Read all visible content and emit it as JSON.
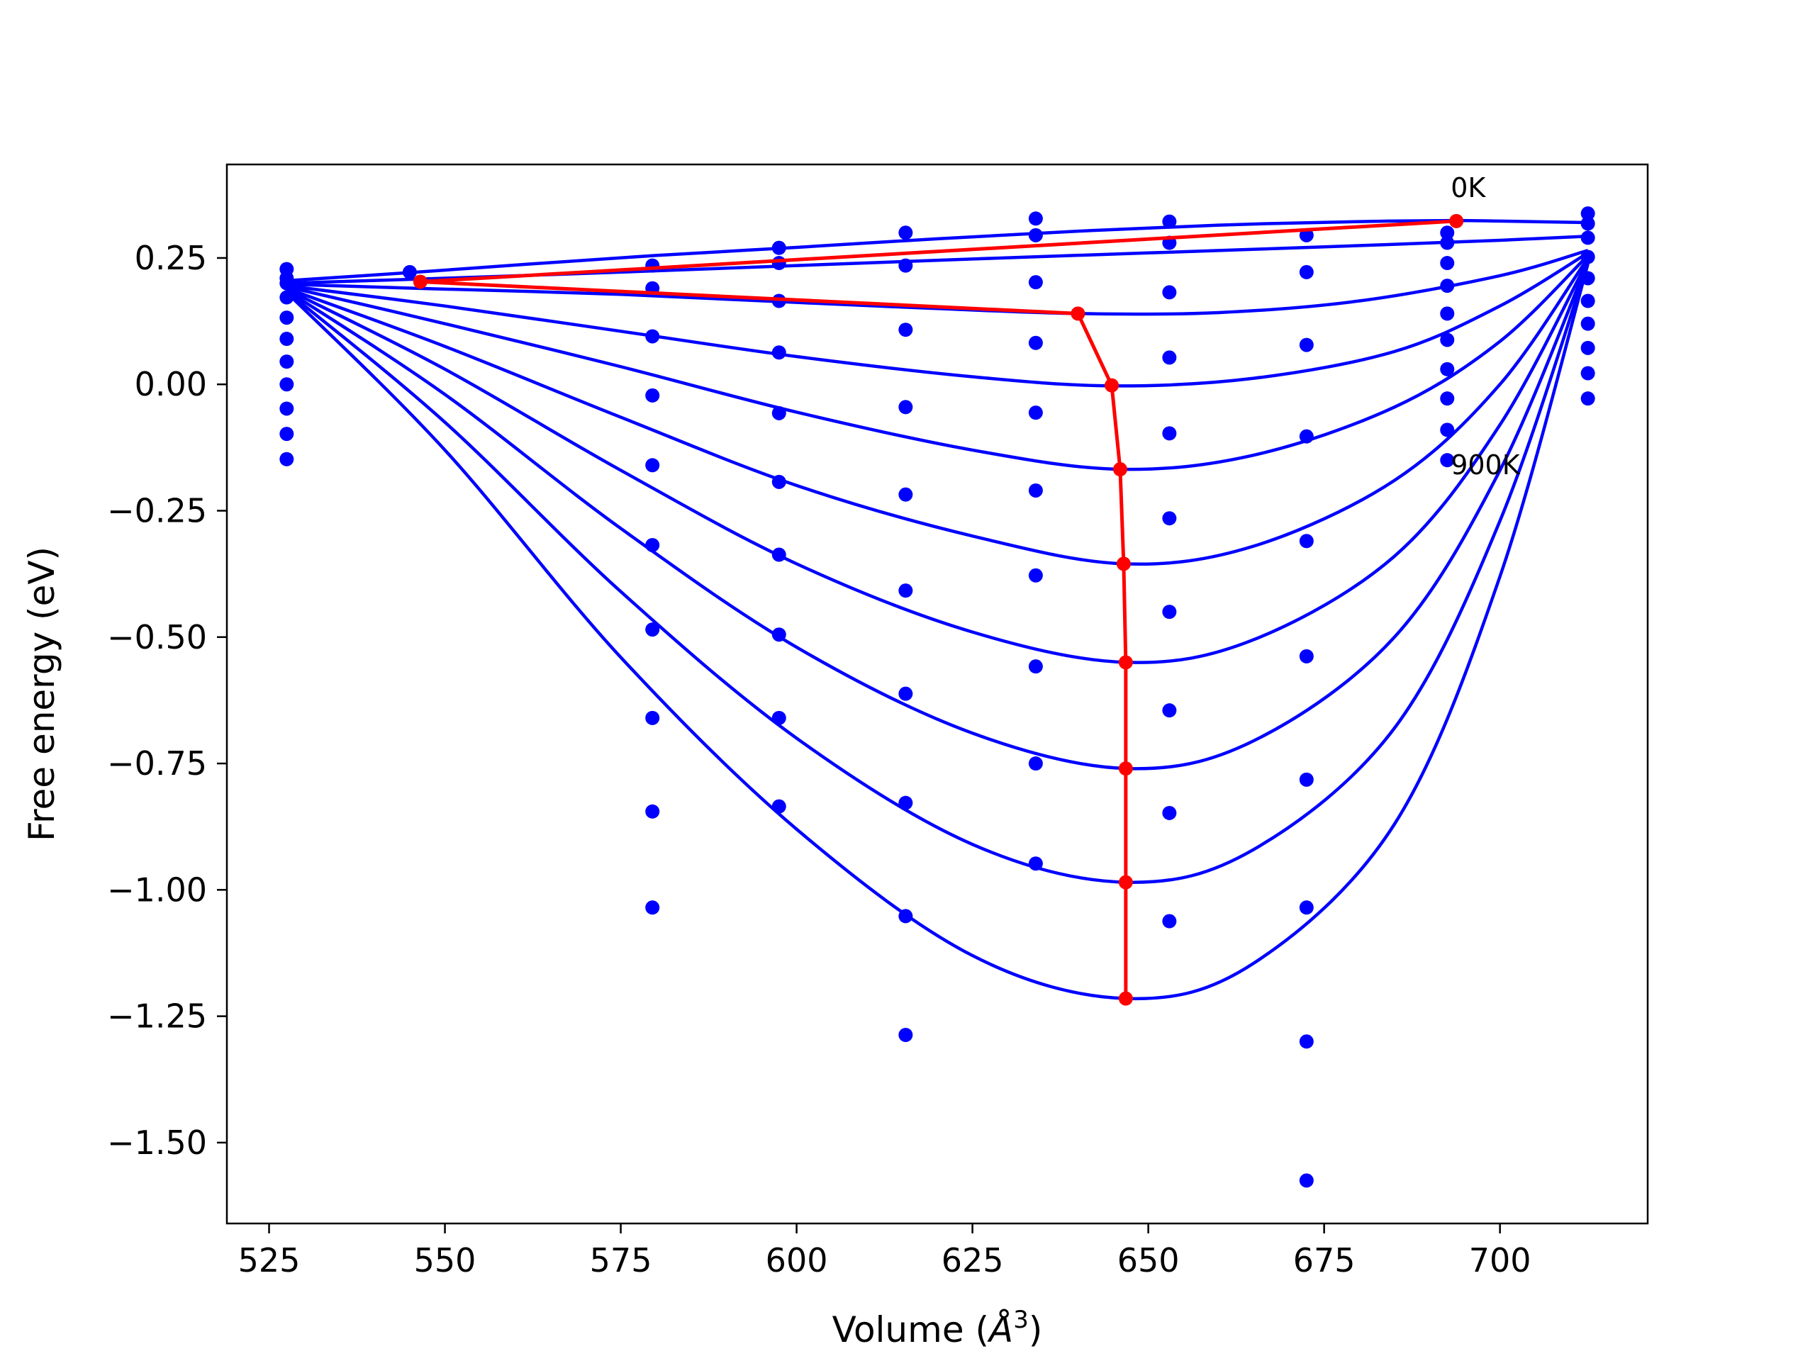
{
  "chart_data": {
    "type": "line",
    "xlabel": "Volume (",
    "xlabel_unit": "Å",
    "xlabel_sup": "3",
    "xlabel_close": ")",
    "ylabel": "Free energy (eV)",
    "xlim": [
      519,
      721
    ],
    "ylim": [
      -1.66,
      0.435
    ],
    "x_ticks": [
      525,
      550,
      575,
      600,
      625,
      650,
      675,
      700
    ],
    "x_tick_labels": [
      "525",
      "550",
      "575",
      "600",
      "625",
      "650",
      "675",
      "700"
    ],
    "y_ticks": [
      0.25,
      0.0,
      -0.25,
      -0.5,
      -0.75,
      -1.0,
      -1.25,
      -1.5
    ],
    "y_tick_labels": [
      "0.25",
      "0.00",
      "−0.25",
      "−0.50",
      "−0.75",
      "−1.00",
      "−1.25",
      "−1.50"
    ],
    "grid": false,
    "legend": "none",
    "annotations": [
      {
        "text": "0K",
        "x": 693,
        "y": 0.39
      },
      {
        "text": "900K",
        "x": 693,
        "y": -0.158
      }
    ],
    "colors": {
      "fit": "#0000ff",
      "points": "#0000ff",
      "minima": "#ff0000"
    },
    "fit_curves": [
      {
        "x": [
          527.5,
          546.0,
          562.0,
          580.0,
          600.0,
          620.0,
          640.0,
          660.0,
          680.0,
          693.0,
          700.0,
          712.5
        ],
        "y": [
          0.205,
          0.222,
          0.238,
          0.255,
          0.271,
          0.288,
          0.303,
          0.315,
          0.322,
          0.324,
          0.323,
          0.32
        ]
      },
      {
        "x": [
          527.5,
          550.0,
          575.0,
          600.0,
          625.0,
          650.0,
          675.0,
          700.0,
          712.5
        ],
        "y": [
          0.2,
          0.21,
          0.222,
          0.235,
          0.248,
          0.26,
          0.272,
          0.285,
          0.293
        ]
      },
      {
        "x": [
          527.5,
          546.0,
          575.0,
          600.0,
          620.0,
          640.0,
          660.0,
          680.0,
          700.0,
          712.5
        ],
        "y": [
          0.198,
          0.19,
          0.178,
          0.162,
          0.15,
          0.14,
          0.142,
          0.165,
          0.215,
          0.265
        ]
      },
      {
        "x": [
          527.5,
          550.0,
          575.0,
          600.0,
          625.0,
          645.0,
          665.0,
          685.0,
          700.0,
          712.5
        ],
        "y": [
          0.195,
          0.155,
          0.105,
          0.055,
          0.015,
          -0.003,
          0.012,
          0.065,
          0.155,
          0.26
        ]
      },
      {
        "x": [
          527.5,
          550.0,
          575.0,
          600.0,
          625.0,
          646.0,
          665.0,
          685.0,
          700.0,
          712.5
        ],
        "y": [
          0.193,
          0.12,
          0.035,
          -0.055,
          -0.13,
          -0.168,
          -0.14,
          -0.045,
          0.085,
          0.255
        ]
      },
      {
        "x": [
          527.5,
          550.0,
          575.0,
          600.0,
          625.0,
          646.5,
          665.0,
          685.0,
          700.0,
          712.5
        ],
        "y": [
          0.19,
          0.075,
          -0.065,
          -0.2,
          -0.3,
          -0.355,
          -0.32,
          -0.19,
          0.0,
          0.25
        ]
      },
      {
        "x": [
          527.5,
          550.0,
          575.0,
          600.0,
          625.0,
          647.0,
          665.0,
          685.0,
          700.0,
          712.5
        ],
        "y": [
          0.188,
          0.03,
          -0.17,
          -0.355,
          -0.49,
          -0.55,
          -0.505,
          -0.34,
          -0.08,
          0.245
        ]
      },
      {
        "x": [
          527.5,
          550.0,
          575.0,
          600.0,
          625.0,
          647.0,
          665.0,
          685.0,
          700.0,
          712.5
        ],
        "y": [
          0.186,
          -0.02,
          -0.285,
          -0.52,
          -0.69,
          -0.76,
          -0.705,
          -0.5,
          -0.17,
          0.242
        ]
      },
      {
        "x": [
          527.5,
          550.0,
          575.0,
          600.0,
          625.0,
          647.0,
          665.0,
          685.0,
          700.0,
          712.5
        ],
        "y": [
          0.184,
          -0.075,
          -0.41,
          -0.7,
          -0.91,
          -0.985,
          -0.92,
          -0.68,
          -0.27,
          0.24
        ]
      },
      {
        "x": [
          527.5,
          550.0,
          575.0,
          600.0,
          625.0,
          647.0,
          665.0,
          685.0,
          700.0,
          712.5
        ],
        "y": [
          0.182,
          -0.13,
          -0.54,
          -0.88,
          -1.13,
          -1.215,
          -1.145,
          -0.87,
          -0.38,
          0.238
        ]
      }
    ],
    "minima_path": {
      "x": [
        693.8,
        546.5,
        640.0,
        644.8,
        646.0,
        646.5,
        646.8,
        646.8,
        646.8,
        646.8
      ],
      "y": [
        0.323,
        0.203,
        0.14,
        -0.002,
        -0.168,
        -0.355,
        -0.55,
        -0.76,
        -0.985,
        -1.215
      ]
    },
    "scatter": [
      {
        "x": 527.5,
        "y": [
          0.228,
          0.21,
          0.2,
          0.172,
          0.132,
          0.09,
          0.045,
          0.0,
          -0.048,
          -0.098,
          -0.148
        ]
      },
      {
        "x": 545.0,
        "y": [
          0.222
        ]
      },
      {
        "x": 579.5,
        "y": [
          0.235,
          0.19,
          0.095,
          -0.022,
          -0.16,
          -0.318,
          -0.485,
          -0.66,
          -0.845,
          -1.035
        ]
      },
      {
        "x": 597.5,
        "y": [
          0.27,
          0.24,
          0.165,
          0.063,
          -0.057,
          -0.193,
          -0.337,
          -0.495,
          -0.66,
          -0.835
        ]
      },
      {
        "x": 615.5,
        "y": [
          0.3,
          0.235,
          0.108,
          -0.045,
          -0.218,
          -0.408,
          -0.612,
          -0.828,
          -1.052,
          -1.287
        ]
      },
      {
        "x": 634.0,
        "y": [
          0.328,
          0.295,
          0.202,
          0.082,
          -0.056,
          -0.21,
          -0.378,
          -0.558,
          -0.75,
          -0.948
        ]
      },
      {
        "x": 653.0,
        "y": [
          0.322,
          0.28,
          0.182,
          0.053,
          -0.097,
          -0.265,
          -0.45,
          -0.645,
          -0.848,
          -1.062
        ]
      },
      {
        "x": 672.5,
        "y": [
          0.295,
          0.222,
          0.078,
          -0.103,
          -0.31,
          -0.538,
          -0.782,
          -1.035,
          -1.3,
          -1.575
        ]
      },
      {
        "x": 692.5,
        "y": [
          0.3,
          0.28,
          0.24,
          0.195,
          0.14,
          0.088,
          0.03,
          -0.028,
          -0.09,
          -0.15
        ]
      },
      {
        "x": 712.5,
        "y": [
          0.338,
          0.318,
          0.29,
          0.252,
          0.21,
          0.165,
          0.12,
          0.072,
          0.022,
          -0.028
        ]
      }
    ]
  }
}
